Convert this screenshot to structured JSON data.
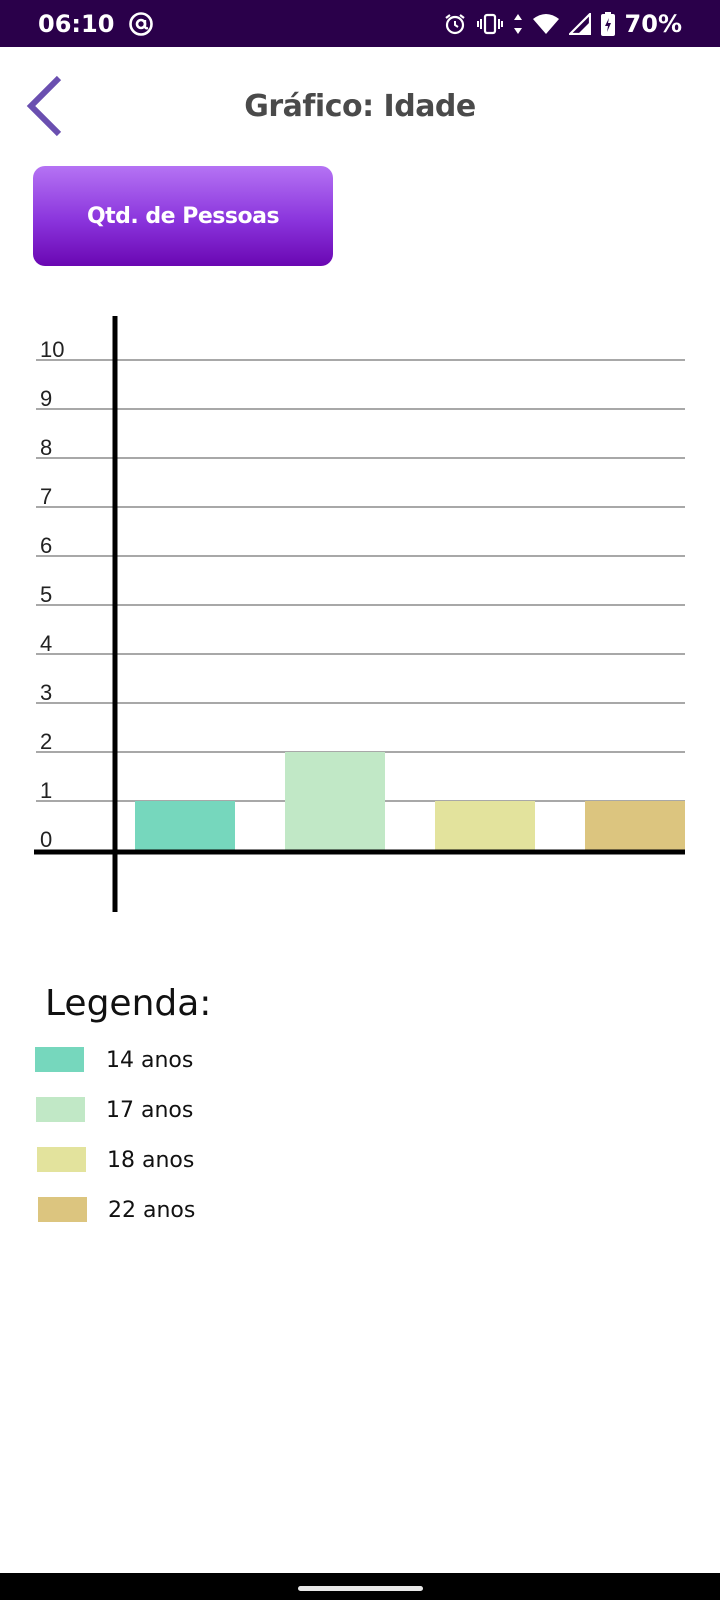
{
  "status_bar": {
    "time": "06:10",
    "battery": "70%",
    "icons": [
      "at-sign-icon",
      "alarm-icon",
      "vibrate-icon",
      "data-arrows-icon",
      "wifi-icon",
      "signal-icon",
      "battery-charging-icon"
    ]
  },
  "header": {
    "title": "Gráfico: Idade",
    "back_icon": "chevron-left-icon"
  },
  "metric_button": {
    "label": "Qtd. de Pessoas"
  },
  "chart_data": {
    "type": "bar",
    "categories": [
      "14 anos",
      "17 anos",
      "18 anos",
      "22 anos"
    ],
    "values": [
      1,
      2,
      1,
      1
    ],
    "colors": [
      "#76d7bd",
      "#c1e8c6",
      "#e3e39d",
      "#dcc57f"
    ],
    "ylim": [
      0,
      10
    ],
    "yticks": [
      "0",
      "1",
      "2",
      "3",
      "4",
      "5",
      "6",
      "7",
      "8",
      "9",
      "10"
    ],
    "grid": true
  },
  "legend": {
    "title": "Legenda:",
    "items": [
      {
        "label": "14 anos",
        "color": "#76d7bd"
      },
      {
        "label": "17 anos",
        "color": "#c1e8c6"
      },
      {
        "label": "18 anos",
        "color": "#e3e39d"
      },
      {
        "label": "22 anos",
        "color": "#dcc57f"
      }
    ]
  },
  "colors": {
    "status_bar_bg": "#2a004a",
    "accent": "#6a4fb0",
    "button_gradient_top": "#b573f4",
    "button_gradient_bottom": "#6a07b2",
    "title_text": "#4a4a4a"
  }
}
